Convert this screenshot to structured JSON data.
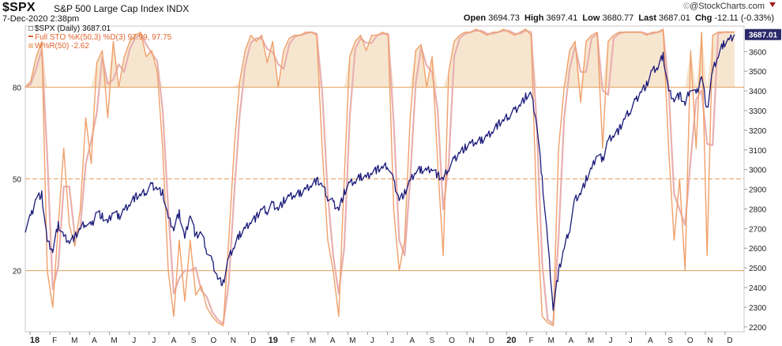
{
  "header": {
    "ticker": "$SPX",
    "name": "S&P 500 Large Cap Index",
    "exchange": "INDX",
    "date": "7-Dec-2020 2:38pm",
    "open_label": "Open",
    "open": "3694.73",
    "high_label": "High",
    "high": "3697.41",
    "low_label": "Low",
    "low": "3680.77",
    "last_label": "Last",
    "last": "3687.01",
    "chg_label": "Chg",
    "chg": "-12.11 (-0.33%)",
    "credit": "@StockCharts.com"
  },
  "legend": {
    "spx": "$SPX (Daily) 3687.01",
    "sto": "Full STO %K(50,3) %D(3) 97.99, 97.75",
    "wr": "W%R(50) -2.62"
  },
  "colors": {
    "price": "#1a1a7a",
    "stoch": "#f0a06a",
    "stoch_d": "#e8b0b0",
    "fill": "#f7e6cf",
    "refline": "#e3a05a",
    "badge": "#2a2a6a"
  },
  "chart_data": {
    "type": "line",
    "last_label": "3687.01",
    "x_labels": [
      "18",
      "F",
      "M",
      "A",
      "M",
      "J",
      "J",
      "A",
      "S",
      "O",
      "N",
      "D",
      "19",
      "F",
      "M",
      "A",
      "M",
      "J",
      "J",
      "A",
      "S",
      "O",
      "N",
      "D",
      "20",
      "F",
      "M",
      "A",
      "M",
      "J",
      "J",
      "A",
      "S",
      "O",
      "N",
      "D"
    ],
    "y_right_ticks": [
      3600,
      3500,
      3400,
      3300,
      3200,
      3100,
      3000,
      2900,
      2800,
      2700,
      2600,
      2500,
      2400,
      2300,
      2200
    ],
    "y_right_range": [
      2175,
      3730
    ],
    "y_left_ticks": [
      80,
      50,
      20
    ],
    "y_left_range": [
      0,
      100
    ],
    "reference_lines": [
      80,
      50,
      20
    ],
    "series": [
      {
        "name": "$SPX (Daily)",
        "axis": "right",
        "values": [
          2700,
          2760,
          2860,
          2872,
          2630,
          2590,
          2720,
          2660,
          2640,
          2655,
          2700,
          2730,
          2710,
          2790,
          2760,
          2725,
          2790,
          2760,
          2795,
          2830,
          2860,
          2870,
          2890,
          2920,
          2905,
          2880,
          2750,
          2700,
          2780,
          2650,
          2780,
          2660,
          2680,
          2590,
          2530,
          2450,
          2420,
          2550,
          2610,
          2670,
          2700,
          2740,
          2755,
          2800,
          2790,
          2825,
          2800,
          2840,
          2860,
          2870,
          2880,
          2900,
          2925,
          2945,
          2920,
          2860,
          2830,
          2800,
          2880,
          2930,
          2940,
          2965,
          2960,
          2990,
          3000,
          3010,
          3020,
          2940,
          2850,
          2880,
          2940,
          2990,
          3000,
          2995,
          3010,
          2970,
          2950,
          3010,
          3050,
          3090,
          3110,
          3130,
          3140,
          3150,
          3170,
          3200,
          3230,
          3250,
          3275,
          3300,
          3330,
          3370,
          3380,
          3240,
          2950,
          2640,
          2300,
          2480,
          2600,
          2700,
          2850,
          2880,
          2950,
          3000,
          3080,
          3050,
          3150,
          3180,
          3200,
          3260,
          3300,
          3350,
          3400,
          3430,
          3500,
          3520,
          3580,
          3400,
          3360,
          3380,
          3330,
          3420,
          3380,
          3480,
          3300,
          3500,
          3580,
          3640,
          3660,
          3687
        ]
      },
      {
        "name": "Full STO %K(50,3)",
        "axis": "left",
        "values": [
          80,
          82,
          90,
          95,
          20,
          8,
          35,
          60,
          35,
          28,
          40,
          70,
          55,
          88,
          92,
          70,
          95,
          80,
          90,
          95,
          97,
          98,
          90,
          92,
          85,
          60,
          20,
          5,
          30,
          10,
          30,
          12,
          15,
          8,
          5,
          3,
          2,
          30,
          60,
          82,
          92,
          97,
          95,
          97,
          88,
          95,
          80,
          92,
          96,
          97,
          97,
          98,
          98,
          97,
          60,
          30,
          20,
          5,
          50,
          90,
          95,
          97,
          92,
          97,
          97,
          98,
          97,
          40,
          20,
          30,
          70,
          92,
          94,
          80,
          90,
          55,
          25,
          85,
          95,
          97,
          98,
          98,
          99,
          98,
          97,
          98,
          98,
          99,
          98,
          97,
          98,
          99,
          97,
          40,
          5,
          3,
          2,
          60,
          80,
          92,
          95,
          75,
          95,
          97,
          98,
          60,
          95,
          97,
          98,
          98,
          98,
          98,
          98,
          97,
          98,
          98,
          99,
          60,
          30,
          50,
          20,
          92,
          60,
          98,
          25,
          97,
          98,
          98,
          98,
          98
        ]
      }
    ],
    "fill_above": 80
  }
}
